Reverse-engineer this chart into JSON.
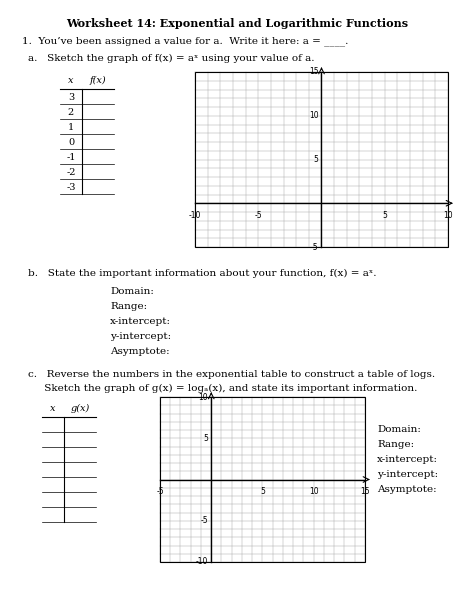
{
  "title": "Worksheet 14: Exponential and Logarithmic Functions",
  "q1_text": "1.  You’ve been assigned a value for a.  Write it here: a = ____.",
  "qa_text": "a.   Sketch the graph of f(x) = aˣ using your value of a.",
  "table1_headers": [
    "x",
    "f(x)"
  ],
  "table1_x": [
    "3",
    "2",
    "1",
    "0",
    "-1",
    "-2",
    "-3"
  ],
  "graph1_xlim": [
    -10,
    10
  ],
  "graph1_ylim": [
    -5,
    15
  ],
  "graph1_xticks": [
    -10,
    -5,
    0,
    5,
    10
  ],
  "graph1_yticks": [
    -5,
    0,
    5,
    10,
    15
  ],
  "qb_text": "b.   State the important information about your function, f(x) = aˣ.",
  "info_labels": [
    "Domain:",
    "Range:",
    "x-intercept:",
    "y-intercept:",
    "Asymptote:"
  ],
  "qc_text1": "c.   Reverse the numbers in the exponential table to construct a table of logs.",
  "qc_text2": "     Sketch the graph of g(x) = logₐ(x), and state its important information.",
  "table2_headers": [
    "x",
    "g(x)"
  ],
  "table2_rows": 7,
  "graph2_xlim": [
    -5,
    15
  ],
  "graph2_ylim": [
    -10,
    10
  ],
  "graph2_xticks": [
    -5,
    0,
    5,
    10,
    15
  ],
  "graph2_yticks": [
    -10,
    -5,
    0,
    5,
    10
  ],
  "info2_labels": [
    "Domain:",
    "Range:",
    "x-intercept:",
    "y-intercept:",
    "Asymptote:"
  ],
  "bg_color": "#ffffff",
  "grid_color": "#aaaaaa",
  "text_color": "#000000"
}
